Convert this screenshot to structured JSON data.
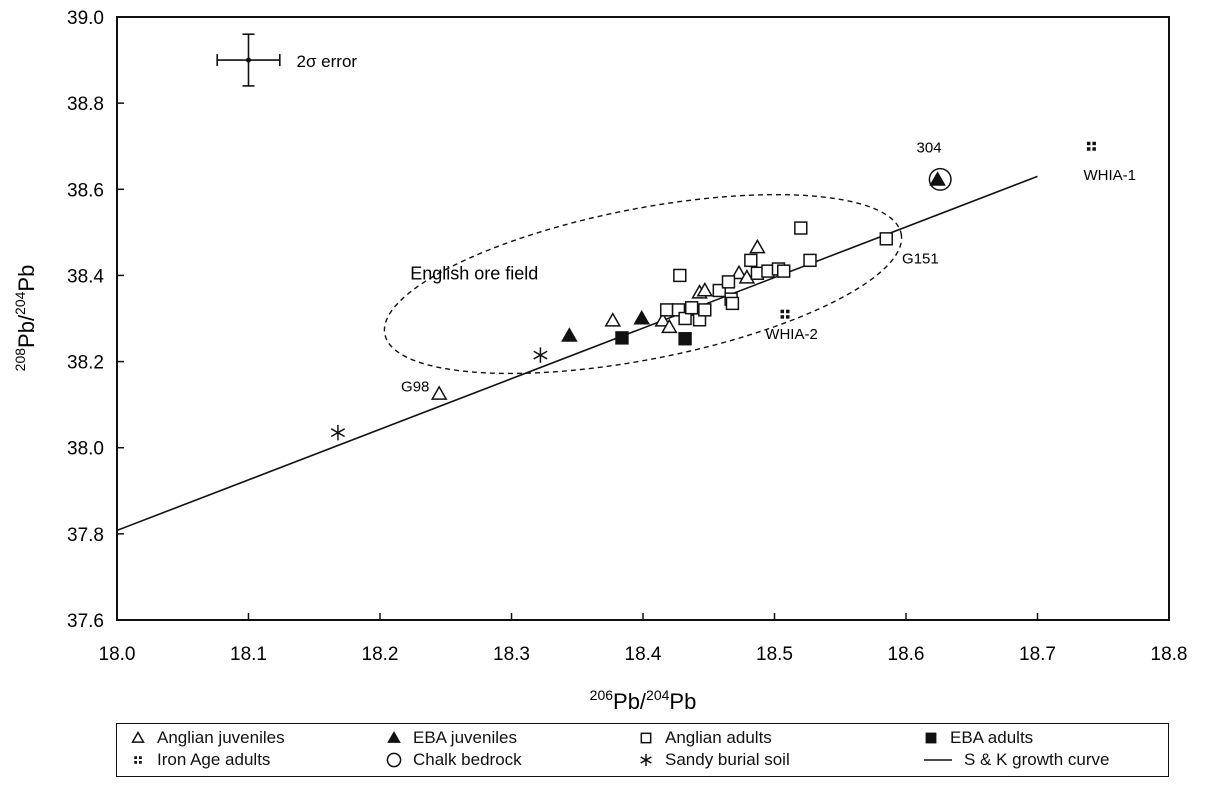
{
  "chart_data": {
    "type": "scatter",
    "xlabel": "²⁰⁶Pb/²⁰⁴Pb",
    "ylabel": "²⁰⁸Pb/²⁰⁴Pb",
    "xlim": [
      18.0,
      18.8
    ],
    "ylim": [
      37.6,
      39.0
    ],
    "xticks": [
      "18.0",
      "18.1",
      "18.2",
      "18.3",
      "18.4",
      "18.5",
      "18.6",
      "18.7",
      "18.8"
    ],
    "yticks": [
      "37.6",
      "37.8",
      "38.0",
      "38.2",
      "38.4",
      "38.6",
      "38.8",
      "39.0"
    ],
    "grid": false,
    "legend_position": "bottom",
    "series": [
      {
        "name": "Anglian juveniles",
        "marker": "triangle-open",
        "points": [
          [
            18.245,
            38.125
          ],
          [
            18.377,
            38.295
          ],
          [
            18.415,
            38.295
          ],
          [
            18.42,
            38.28
          ],
          [
            18.435,
            38.32
          ],
          [
            18.443,
            38.36
          ],
          [
            18.447,
            38.365
          ],
          [
            18.473,
            38.405
          ],
          [
            18.479,
            38.395
          ],
          [
            18.487,
            38.465
          ]
        ]
      },
      {
        "name": "EBA juveniles",
        "marker": "triangle-filled",
        "points": [
          [
            18.344,
            38.26
          ],
          [
            18.399,
            38.3
          ],
          [
            18.624,
            38.622
          ]
        ]
      },
      {
        "name": "Anglian adults",
        "marker": "square-open",
        "points": [
          [
            18.418,
            38.32
          ],
          [
            18.427,
            38.32
          ],
          [
            18.428,
            38.4
          ],
          [
            18.432,
            38.3
          ],
          [
            18.437,
            38.325
          ],
          [
            18.443,
            38.297
          ],
          [
            18.447,
            38.32
          ],
          [
            18.458,
            38.365
          ],
          [
            18.465,
            38.385
          ],
          [
            18.467,
            38.345
          ],
          [
            18.468,
            38.335
          ],
          [
            18.482,
            38.435
          ],
          [
            18.487,
            38.405
          ],
          [
            18.495,
            38.41
          ],
          [
            18.503,
            38.415
          ],
          [
            18.507,
            38.41
          ],
          [
            18.52,
            38.51
          ],
          [
            18.527,
            38.435
          ],
          [
            18.585,
            38.485
          ]
        ]
      },
      {
        "name": "EBA adults",
        "marker": "square-filled",
        "points": [
          [
            18.384,
            38.255
          ],
          [
            18.432,
            38.253
          ]
        ]
      },
      {
        "name": "Iron Age adults",
        "marker": "quad-square",
        "points": [
          [
            18.508,
            38.31
          ],
          [
            18.741,
            38.7
          ]
        ]
      },
      {
        "name": "Chalk bedrock",
        "marker": "circle-open",
        "points": [
          [
            18.626,
            38.623
          ]
        ]
      },
      {
        "name": "Sandy burial soil",
        "marker": "asterisk",
        "points": [
          [
            18.168,
            38.035
          ],
          [
            18.322,
            38.215
          ]
        ]
      },
      {
        "name": "S & K growth curve",
        "marker": "line",
        "points": [
          [
            18.0,
            37.808
          ],
          [
            18.7,
            38.63
          ]
        ]
      }
    ],
    "ellipse": {
      "label": "English ore field",
      "cx": 18.4,
      "cy": 38.38,
      "rx": 0.2,
      "ry": 0.175,
      "rotation_deg": 11
    },
    "error_bar": {
      "label": "2σ error",
      "x": 18.1,
      "y": 38.9,
      "dx": 0.014,
      "dy": 0.06
    },
    "annotations": [
      {
        "text": "304",
        "x": 18.608,
        "y": 38.685
      },
      {
        "text": "WHIA-1",
        "x": 18.735,
        "y": 38.622
      },
      {
        "text": "G151",
        "x": 18.597,
        "y": 38.428
      },
      {
        "text": "English ore field",
        "x": 18.223,
        "y": 38.39
      },
      {
        "text": "WHIA-2",
        "x": 18.493,
        "y": 38.252
      },
      {
        "text": "G98",
        "x": 18.216,
        "y": 38.13
      }
    ]
  },
  "legend": [
    {
      "label": "Anglian juveniles",
      "marker": "triangle-open"
    },
    {
      "label": "EBA juveniles",
      "marker": "triangle-filled"
    },
    {
      "label": "Anglian adults",
      "marker": "square-open"
    },
    {
      "label": "EBA adults",
      "marker": "square-filled"
    },
    {
      "label": "Iron Age adults",
      "marker": "quad-square"
    },
    {
      "label": "Chalk bedrock",
      "marker": "circle-open"
    },
    {
      "label": "Sandy burial soil",
      "marker": "asterisk"
    },
    {
      "label": "S & K growth curve",
      "marker": "line"
    }
  ]
}
